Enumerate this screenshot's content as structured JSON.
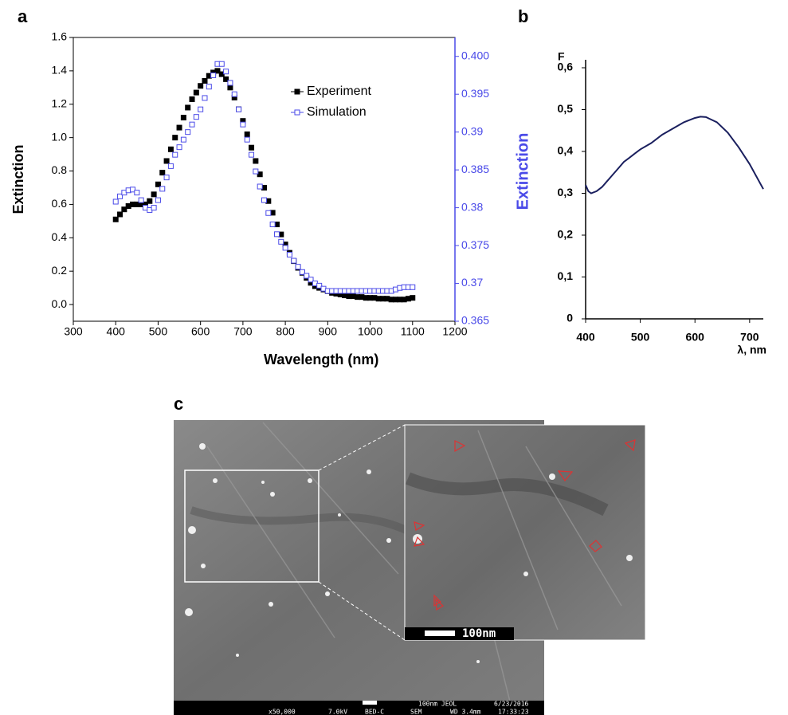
{
  "panel_labels": [
    "a",
    "b",
    "c"
  ],
  "chart_data": [
    {
      "type": "line",
      "x_label": "Wavelength (nm)",
      "y_label": "Extinction",
      "y2_label": "Extinction",
      "xlim": [
        300,
        1200
      ],
      "xticks": [
        300,
        400,
        500,
        600,
        700,
        800,
        900,
        1000,
        1100,
        1200
      ],
      "ylim": [
        -0.1,
        1.6
      ],
      "yticks": [
        {
          "value": 0,
          "label": "0.0"
        },
        0.2,
        0.4,
        0.6,
        0.8,
        {
          "value": 1,
          "label": "1.0"
        },
        1.2,
        1.4,
        1.6
      ],
      "y2lim": [
        0.365,
        0.4025
      ],
      "y2ticks": [
        0.365,
        0.37,
        0.375,
        0.38,
        0.385,
        0.39,
        0.395,
        {
          "value": 0.4,
          "label": "0.400"
        }
      ],
      "x": [
        400,
        410,
        420,
        430,
        440,
        450,
        460,
        470,
        480,
        490,
        500,
        510,
        520,
        530,
        540,
        550,
        560,
        570,
        580,
        590,
        600,
        610,
        620,
        630,
        640,
        650,
        660,
        670,
        680,
        690,
        700,
        710,
        720,
        730,
        740,
        750,
        760,
        770,
        780,
        790,
        800,
        810,
        820,
        830,
        840,
        850,
        860,
        870,
        880,
        890,
        900,
        910,
        920,
        930,
        940,
        950,
        960,
        970,
        980,
        990,
        1000,
        1010,
        1020,
        1030,
        1040,
        1050,
        1060,
        1070,
        1080,
        1090,
        1100
      ],
      "series": [
        {
          "name": "Experiment",
          "color": "#000000",
          "marker": "filled",
          "values": [
            0.51,
            0.54,
            0.57,
            0.59,
            0.6,
            0.6,
            0.6,
            0.6,
            0.62,
            0.66,
            0.72,
            0.79,
            0.86,
            0.93,
            1.0,
            1.06,
            1.12,
            1.18,
            1.23,
            1.27,
            1.31,
            1.34,
            1.37,
            1.39,
            1.4,
            1.38,
            1.35,
            1.3,
            1.24,
            1.17,
            1.1,
            1.02,
            0.94,
            0.86,
            0.78,
            0.7,
            0.62,
            0.55,
            0.48,
            0.42,
            0.36,
            0.31,
            0.26,
            0.22,
            0.19,
            0.16,
            0.13,
            0.11,
            0.1,
            0.09,
            0.08,
            0.07,
            0.065,
            0.06,
            0.055,
            0.05,
            0.05,
            0.045,
            0.045,
            0.04,
            0.04,
            0.04,
            0.035,
            0.035,
            0.035,
            0.03,
            0.03,
            0.03,
            0.03,
            0.035,
            0.04
          ]
        },
        {
          "name": "Simulation",
          "color": "#4a4ae8",
          "marker": "open",
          "axis": "y2",
          "values": [
            0.3808,
            0.3815,
            0.382,
            0.3823,
            0.3824,
            0.382,
            0.381,
            0.38,
            0.3797,
            0.38,
            0.381,
            0.3825,
            0.384,
            0.3855,
            0.387,
            0.388,
            0.389,
            0.39,
            0.391,
            0.392,
            0.393,
            0.3945,
            0.396,
            0.3975,
            0.399,
            0.399,
            0.398,
            0.3965,
            0.395,
            0.393,
            0.391,
            0.389,
            0.387,
            0.3848,
            0.3828,
            0.381,
            0.3793,
            0.3778,
            0.3765,
            0.3755,
            0.3747,
            0.3738,
            0.373,
            0.3722,
            0.3715,
            0.371,
            0.3705,
            0.37,
            0.3697,
            0.3693,
            0.369,
            0.369,
            0.369,
            0.369,
            0.369,
            0.369,
            0.369,
            0.369,
            0.369,
            0.369,
            0.369,
            0.369,
            0.369,
            0.369,
            0.369,
            0.369,
            0.3692,
            0.3694,
            0.3695,
            0.3695,
            0.3695
          ]
        }
      ]
    },
    {
      "type": "line",
      "x_label": "λ, nm",
      "y_label": "F",
      "xlim": [
        400,
        725
      ],
      "xticks": [
        400,
        500,
        600,
        700
      ],
      "ylim": [
        0,
        0.6
      ],
      "yticks": [
        0,
        {
          "value": 0.1,
          "label": "0,1"
        },
        {
          "value": 0.2,
          "label": "0,2"
        },
        {
          "value": 0.3,
          "label": "0,3"
        },
        {
          "value": 0.4,
          "label": "0,4"
        },
        {
          "value": 0.5,
          "label": "0,5"
        },
        {
          "value": 0.6,
          "label": "0,6"
        }
      ],
      "x": [
        400,
        405,
        410,
        420,
        430,
        440,
        450,
        460,
        470,
        480,
        490,
        500,
        520,
        540,
        560,
        580,
        600,
        610,
        620,
        640,
        660,
        680,
        700,
        725
      ],
      "series": [
        {
          "name": "F",
          "color": "#1a1f5e",
          "values": [
            0.32,
            0.305,
            0.3,
            0.305,
            0.315,
            0.33,
            0.345,
            0.36,
            0.375,
            0.385,
            0.395,
            0.405,
            0.42,
            0.44,
            0.455,
            0.47,
            0.48,
            0.483,
            0.482,
            0.47,
            0.445,
            0.41,
            0.37,
            0.31
          ]
        }
      ]
    }
  ],
  "sem": {
    "inset_scale": "100nm",
    "info_bar": [
      "100nm JEOL",
      "6/23/2016",
      "x50,000",
      "7.0kV",
      "BED-C",
      "SEM",
      "WD 3.4mm",
      "17:33:23"
    ]
  }
}
